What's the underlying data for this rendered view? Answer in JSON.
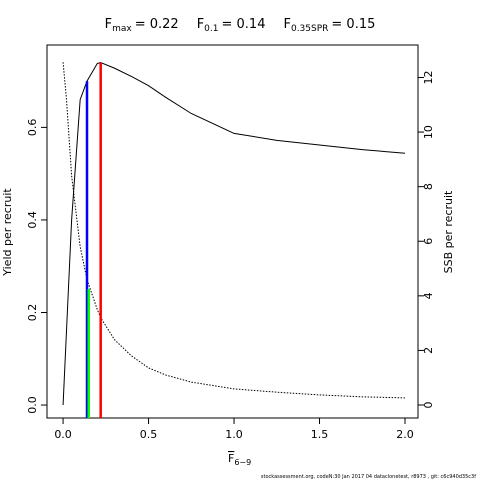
{
  "chart_data": {
    "type": "line",
    "title_parts": [
      {
        "symbol": "F",
        "subscript": "max",
        "text": "= 0.22",
        "value": 0.22,
        "height": 0.74,
        "color": "#ff0000"
      },
      {
        "symbol": "F",
        "subscript": "0.1",
        "text": "= 0.14",
        "value": 0.14,
        "height": 0.7,
        "color": "#0000ff"
      },
      {
        "symbol": "F",
        "subscript": "0.35SPR",
        "text": "= 0.15",
        "value": 0.15,
        "height": 4.25,
        "axis": "y2",
        "color": "#00ff00"
      }
    ],
    "x_label": {
      "symbol": "F",
      "subscript": "6−9"
    },
    "y_label": "Yield per recruit",
    "y2_label": "SSB per recruit",
    "footer": "stockassessment.org, codeN:30 Jan 2017 04 dataclonetest, r8973 , git: c6c940d35c3f",
    "x": [
      0,
      0.02,
      0.05,
      0.1,
      0.14,
      0.2,
      0.22,
      0.3,
      0.4,
      0.5,
      0.6,
      0.75,
      1.0,
      1.25,
      1.5,
      1.75,
      2.0
    ],
    "series": [
      {
        "name": "Yield",
        "color": "#000000",
        "dash": "solid",
        "values": [
          0,
          0.16,
          0.4,
          0.66,
          0.7,
          0.738,
          0.74,
          0.728,
          0.71,
          0.69,
          0.665,
          0.63,
          0.587,
          0.572,
          0.562,
          0.552,
          0.544
        ]
      },
      {
        "name": "SSB",
        "color": "#000000",
        "dash": "dotted",
        "axis": "y2",
        "values": [
          12.56,
          11.2,
          8.4,
          5.8,
          4.6,
          3.5,
          3.2,
          2.4,
          1.8,
          1.36,
          1.1,
          0.84,
          0.59,
          0.47,
          0.37,
          0.3,
          0.26
        ]
      }
    ],
    "xlim": [
      -0.094,
      2.076
    ],
    "xticks": [
      {
        "value": 0,
        "label": "0.0"
      },
      {
        "value": 0.5,
        "label": "0.5"
      },
      {
        "value": 1,
        "label": "1.0"
      },
      {
        "value": 1.5,
        "label": "1.5"
      },
      {
        "value": 2,
        "label": "2.0"
      }
    ],
    "ylim": [
      -0.028,
      0.778
    ],
    "yticks": [
      {
        "value": 0,
        "label": "0.0"
      },
      0.2,
      0.4,
      0.6
    ],
    "y2lim": [
      -0.476,
      13.19
    ],
    "y2ticks": [
      0,
      2,
      4,
      6,
      8,
      10,
      12
    ]
  }
}
